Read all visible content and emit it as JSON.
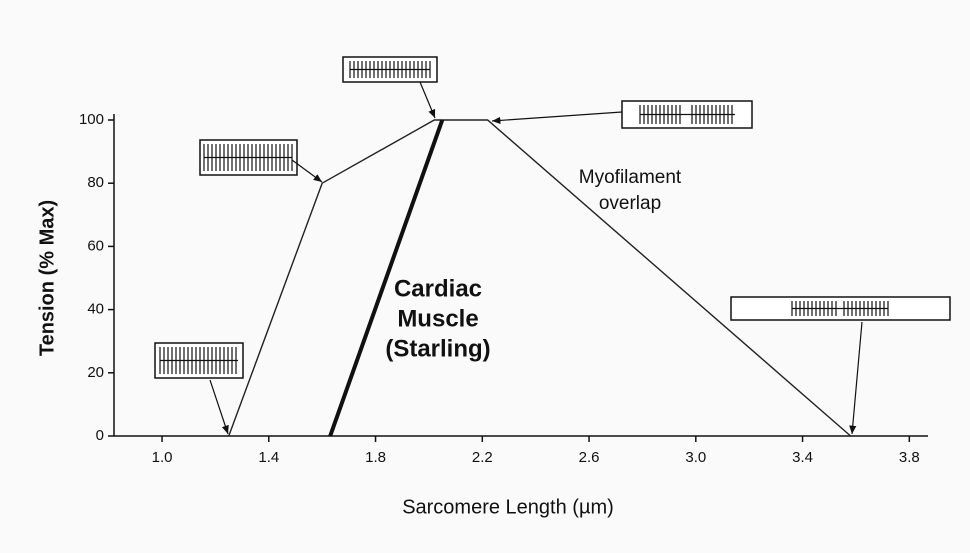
{
  "chart_data": {
    "type": "line",
    "xlabel": "Sarcomere Length (µm)",
    "ylabel": "Tension (% Max)",
    "xlim": [
      0.82,
      3.87
    ],
    "ylim": [
      0,
      100
    ],
    "xticks": [
      {
        "value": 1,
        "label": "1.0"
      },
      1.4,
      1.8,
      2.2,
      2.6,
      {
        "value": 3,
        "label": "3.0"
      },
      3.4,
      3.8
    ],
    "yticks": [
      0,
      20,
      40,
      60,
      80,
      100
    ],
    "series": [
      {
        "color": "#222222",
        "x": [
          1.25,
          1.6,
          2.02,
          2.22,
          3.58
        ],
        "values": [
          0,
          80,
          100,
          100,
          0
        ]
      },
      {
        "color": "#111111",
        "x": [
          1.63,
          2.05
        ],
        "values": [
          0,
          100
        ]
      }
    ],
    "annotations": [
      {
        "lines": [
          "Cardiac",
          "Muscle",
          "(Starling)"
        ]
      },
      {
        "lines": [
          "Myofilament",
          "overlap"
        ]
      }
    ]
  }
}
